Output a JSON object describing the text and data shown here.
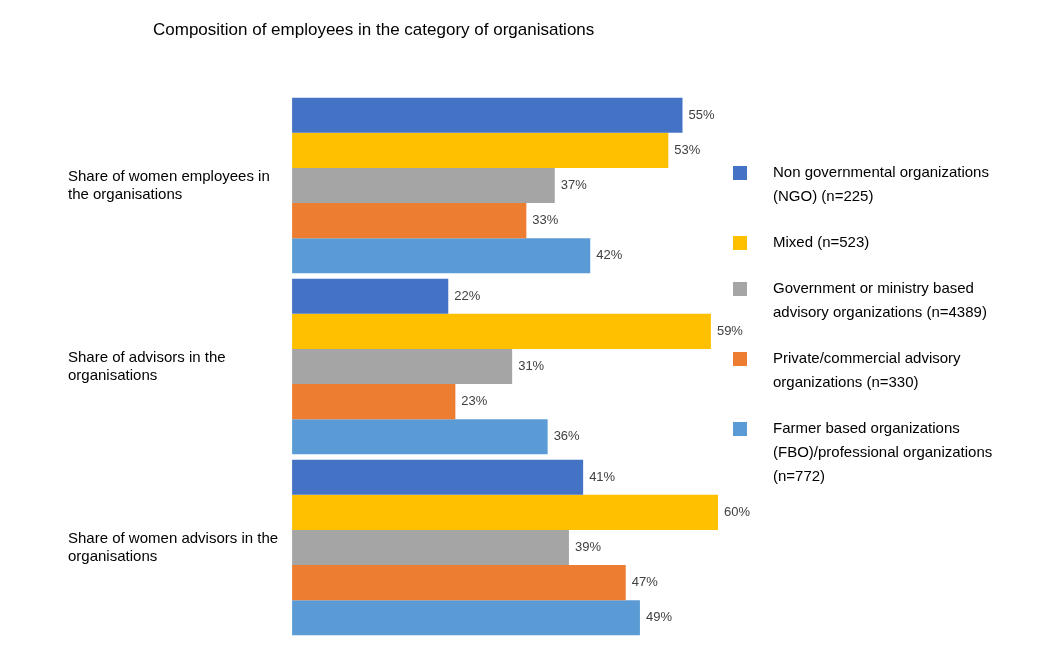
{
  "chart_data": {
    "type": "bar",
    "orientation": "horizontal",
    "title": "Composition of employees in the category of organisations",
    "categories": [
      "Share of women employees in the organisations",
      "Share of advisors in the organisations",
      "Share of women advisors in the organisations"
    ],
    "series": [
      {
        "name": "Non governmental organizations (NGO) (n=225)",
        "color": "#4472c4",
        "values": [
          55,
          22,
          41
        ],
        "value_labels": [
          "55%",
          "22%",
          "41%"
        ]
      },
      {
        "name": "Mixed (n=523)",
        "color": "#ffc000",
        "values": [
          53,
          59,
          60
        ],
        "value_labels": [
          "53%",
          "59%",
          "60%"
        ]
      },
      {
        "name": "Government or ministry based advisory organizations (n=4389)",
        "color": "#a5a5a5",
        "values": [
          37,
          31,
          39
        ],
        "value_labels": [
          "37%",
          "31%",
          "39%"
        ]
      },
      {
        "name": "Private/commercial advisory organizations (n=330)",
        "color": "#ed7d31",
        "values": [
          33,
          23,
          47
        ],
        "value_labels": [
          "33%",
          "23%",
          "47%"
        ]
      },
      {
        "name": "Farmer based organizations (FBO)/professional organizations (n=772)",
        "color": "#5b9bd5",
        "values": [
          42,
          36,
          49
        ],
        "value_labels": [
          "42%",
          "36%",
          "49%"
        ]
      }
    ],
    "legend": "right"
  }
}
